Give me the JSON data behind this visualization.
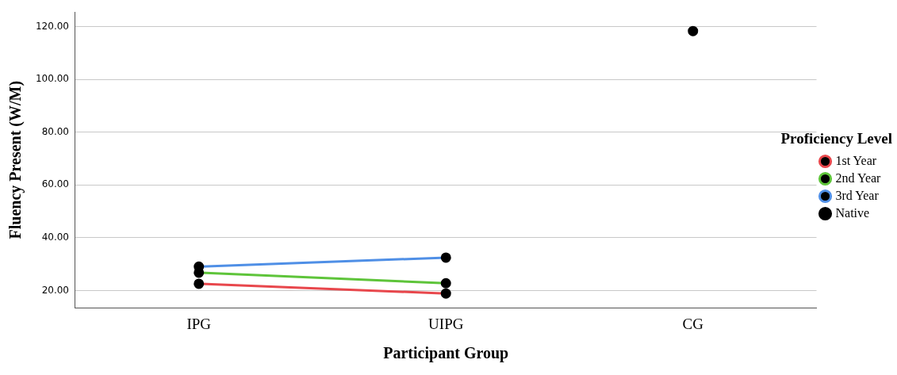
{
  "chart_data": {
    "type": "line",
    "xlabel": "Participant Group",
    "ylabel": "Fluency Present (W/M)",
    "legend_title": "Proficiency Level",
    "categories": [
      "IPG",
      "UIPG",
      "CG"
    ],
    "series": [
      {
        "name": "1st Year",
        "color": "#e8474c",
        "values": [
          22.6,
          18.9,
          null
        ]
      },
      {
        "name": "2nd Year",
        "color": "#5ec43a",
        "values": [
          26.8,
          22.8,
          null
        ]
      },
      {
        "name": "3rd Year",
        "color": "#4f8fe6",
        "values": [
          29.1,
          32.5,
          null
        ]
      },
      {
        "name": "Native",
        "color": "#000000",
        "values": [
          null,
          null,
          118.3
        ]
      }
    ],
    "ylim": [
      13.5,
      125.5
    ],
    "yticks": [
      {
        "value": 20,
        "label": "20.00"
      },
      {
        "value": 40,
        "label": "40.00"
      },
      {
        "value": 60,
        "label": "60.00"
      },
      {
        "value": 80,
        "label": "80.00"
      },
      {
        "value": 100,
        "label": "100.00"
      },
      {
        "value": 120,
        "label": "120.00"
      }
    ],
    "grid": "y",
    "legend": "right",
    "marker": "circle",
    "line_style": "solid"
  }
}
